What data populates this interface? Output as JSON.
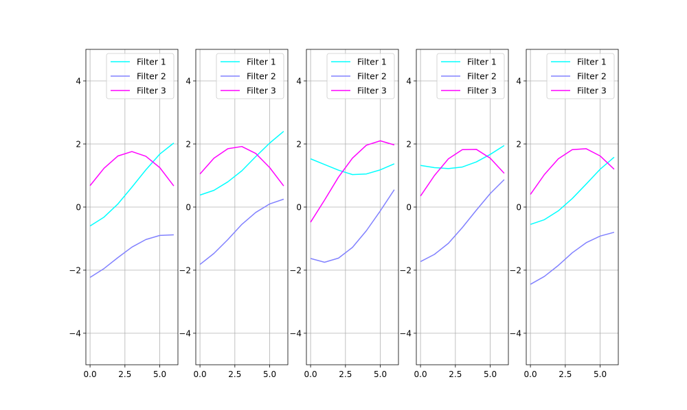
{
  "chart_data": [
    {
      "type": "line",
      "x": [
        0,
        1,
        2,
        3,
        4,
        5,
        6
      ],
      "ylim": [
        -5,
        5
      ],
      "xlim": [
        -0.3,
        6.3
      ],
      "xticks": [
        0,
        2.5,
        5
      ],
      "xtick_labels": [
        "0.0",
        "2.5",
        "5.0"
      ],
      "yticks": [
        -4,
        -2,
        0,
        2,
        4
      ],
      "ytick_labels": [
        "−4",
        "−2",
        "0",
        "2",
        "4"
      ],
      "grid": true,
      "legend_position": "top-right",
      "series": [
        {
          "name": "Filter 1",
          "color": "#00ffff",
          "values": [
            -0.6,
            -0.32,
            0.1,
            0.63,
            1.18,
            1.68,
            2.03
          ]
        },
        {
          "name": "Filter 2",
          "color": "#8080ff",
          "values": [
            -2.23,
            -1.95,
            -1.6,
            -1.27,
            -1.03,
            -0.9,
            -0.88
          ]
        },
        {
          "name": "Filter 3",
          "color": "#ff00ff",
          "values": [
            0.68,
            1.23,
            1.62,
            1.76,
            1.61,
            1.25,
            0.67
          ]
        }
      ]
    },
    {
      "type": "line",
      "x": [
        0,
        1,
        2,
        3,
        4,
        5,
        6
      ],
      "ylim": [
        -5,
        5
      ],
      "xlim": [
        -0.3,
        6.3
      ],
      "xticks": [
        0,
        2.5,
        5
      ],
      "xtick_labels": [
        "0.0",
        "2.5",
        "5.0"
      ],
      "yticks": [
        -4,
        -2,
        0,
        2,
        4
      ],
      "ytick_labels": [
        "−4",
        "−2",
        "0",
        "2",
        "4"
      ],
      "grid": true,
      "legend_position": "top-right",
      "series": [
        {
          "name": "Filter 1",
          "color": "#00ffff",
          "values": [
            0.38,
            0.53,
            0.8,
            1.15,
            1.6,
            2.03,
            2.4
          ]
        },
        {
          "name": "Filter 2",
          "color": "#8080ff",
          "values": [
            -1.82,
            -1.47,
            -1.03,
            -0.55,
            -0.17,
            0.1,
            0.25
          ]
        },
        {
          "name": "Filter 3",
          "color": "#ff00ff",
          "values": [
            1.05,
            1.55,
            1.85,
            1.92,
            1.7,
            1.25,
            0.67
          ]
        }
      ]
    },
    {
      "type": "line",
      "x": [
        0,
        1,
        2,
        3,
        4,
        5,
        6
      ],
      "ylim": [
        -5,
        5
      ],
      "xlim": [
        -0.3,
        6.3
      ],
      "xticks": [
        0,
        2.5,
        5
      ],
      "xtick_labels": [
        "0.0",
        "2.5",
        "5.0"
      ],
      "yticks": [
        -4,
        -2,
        0,
        2,
        4
      ],
      "ytick_labels": [
        "−4",
        "−2",
        "0",
        "2",
        "4"
      ],
      "grid": true,
      "legend_position": "top-right",
      "series": [
        {
          "name": "Filter 1",
          "color": "#00ffff",
          "values": [
            1.53,
            1.35,
            1.17,
            1.03,
            1.05,
            1.18,
            1.37
          ]
        },
        {
          "name": "Filter 2",
          "color": "#8080ff",
          "values": [
            -1.63,
            -1.75,
            -1.62,
            -1.28,
            -0.75,
            -0.12,
            0.55
          ]
        },
        {
          "name": "Filter 3",
          "color": "#ff00ff",
          "values": [
            -0.48,
            0.22,
            0.95,
            1.55,
            1.96,
            2.1,
            1.97
          ]
        }
      ]
    },
    {
      "type": "line",
      "x": [
        0,
        1,
        2,
        3,
        4,
        5,
        6
      ],
      "ylim": [
        -5,
        5
      ],
      "xlim": [
        -0.3,
        6.3
      ],
      "xticks": [
        0,
        2.5,
        5
      ],
      "xtick_labels": [
        "0.0",
        "2.5",
        "5.0"
      ],
      "yticks": [
        -4,
        -2,
        0,
        2,
        4
      ],
      "ytick_labels": [
        "−4",
        "−2",
        "0",
        "2",
        "4"
      ],
      "grid": true,
      "legend_position": "top-right",
      "series": [
        {
          "name": "Filter 1",
          "color": "#00ffff",
          "values": [
            1.32,
            1.25,
            1.22,
            1.27,
            1.43,
            1.67,
            1.95
          ]
        },
        {
          "name": "Filter 2",
          "color": "#8080ff",
          "values": [
            -1.73,
            -1.5,
            -1.15,
            -0.65,
            -0.1,
            0.43,
            0.87
          ]
        },
        {
          "name": "Filter 3",
          "color": "#ff00ff",
          "values": [
            0.35,
            1.0,
            1.53,
            1.82,
            1.83,
            1.55,
            1.07
          ]
        }
      ]
    },
    {
      "type": "line",
      "x": [
        0,
        1,
        2,
        3,
        4,
        5,
        6
      ],
      "ylim": [
        -5,
        5
      ],
      "xlim": [
        -0.3,
        6.3
      ],
      "xticks": [
        0,
        2.5,
        5
      ],
      "xtick_labels": [
        "0.0",
        "2.5",
        "5.0"
      ],
      "yticks": [
        -4,
        -2,
        0,
        2,
        4
      ],
      "ytick_labels": [
        "−4",
        "−2",
        "0",
        "2",
        "4"
      ],
      "grid": true,
      "legend_position": "top-right",
      "series": [
        {
          "name": "Filter 1",
          "color": "#00ffff",
          "values": [
            -0.55,
            -0.4,
            -0.12,
            0.27,
            0.73,
            1.2,
            1.58
          ]
        },
        {
          "name": "Filter 2",
          "color": "#8080ff",
          "values": [
            -2.45,
            -2.2,
            -1.85,
            -1.45,
            -1.13,
            -0.92,
            -0.8
          ]
        },
        {
          "name": "Filter 3",
          "color": "#ff00ff",
          "values": [
            0.4,
            1.03,
            1.53,
            1.82,
            1.85,
            1.62,
            1.2
          ]
        }
      ]
    }
  ]
}
